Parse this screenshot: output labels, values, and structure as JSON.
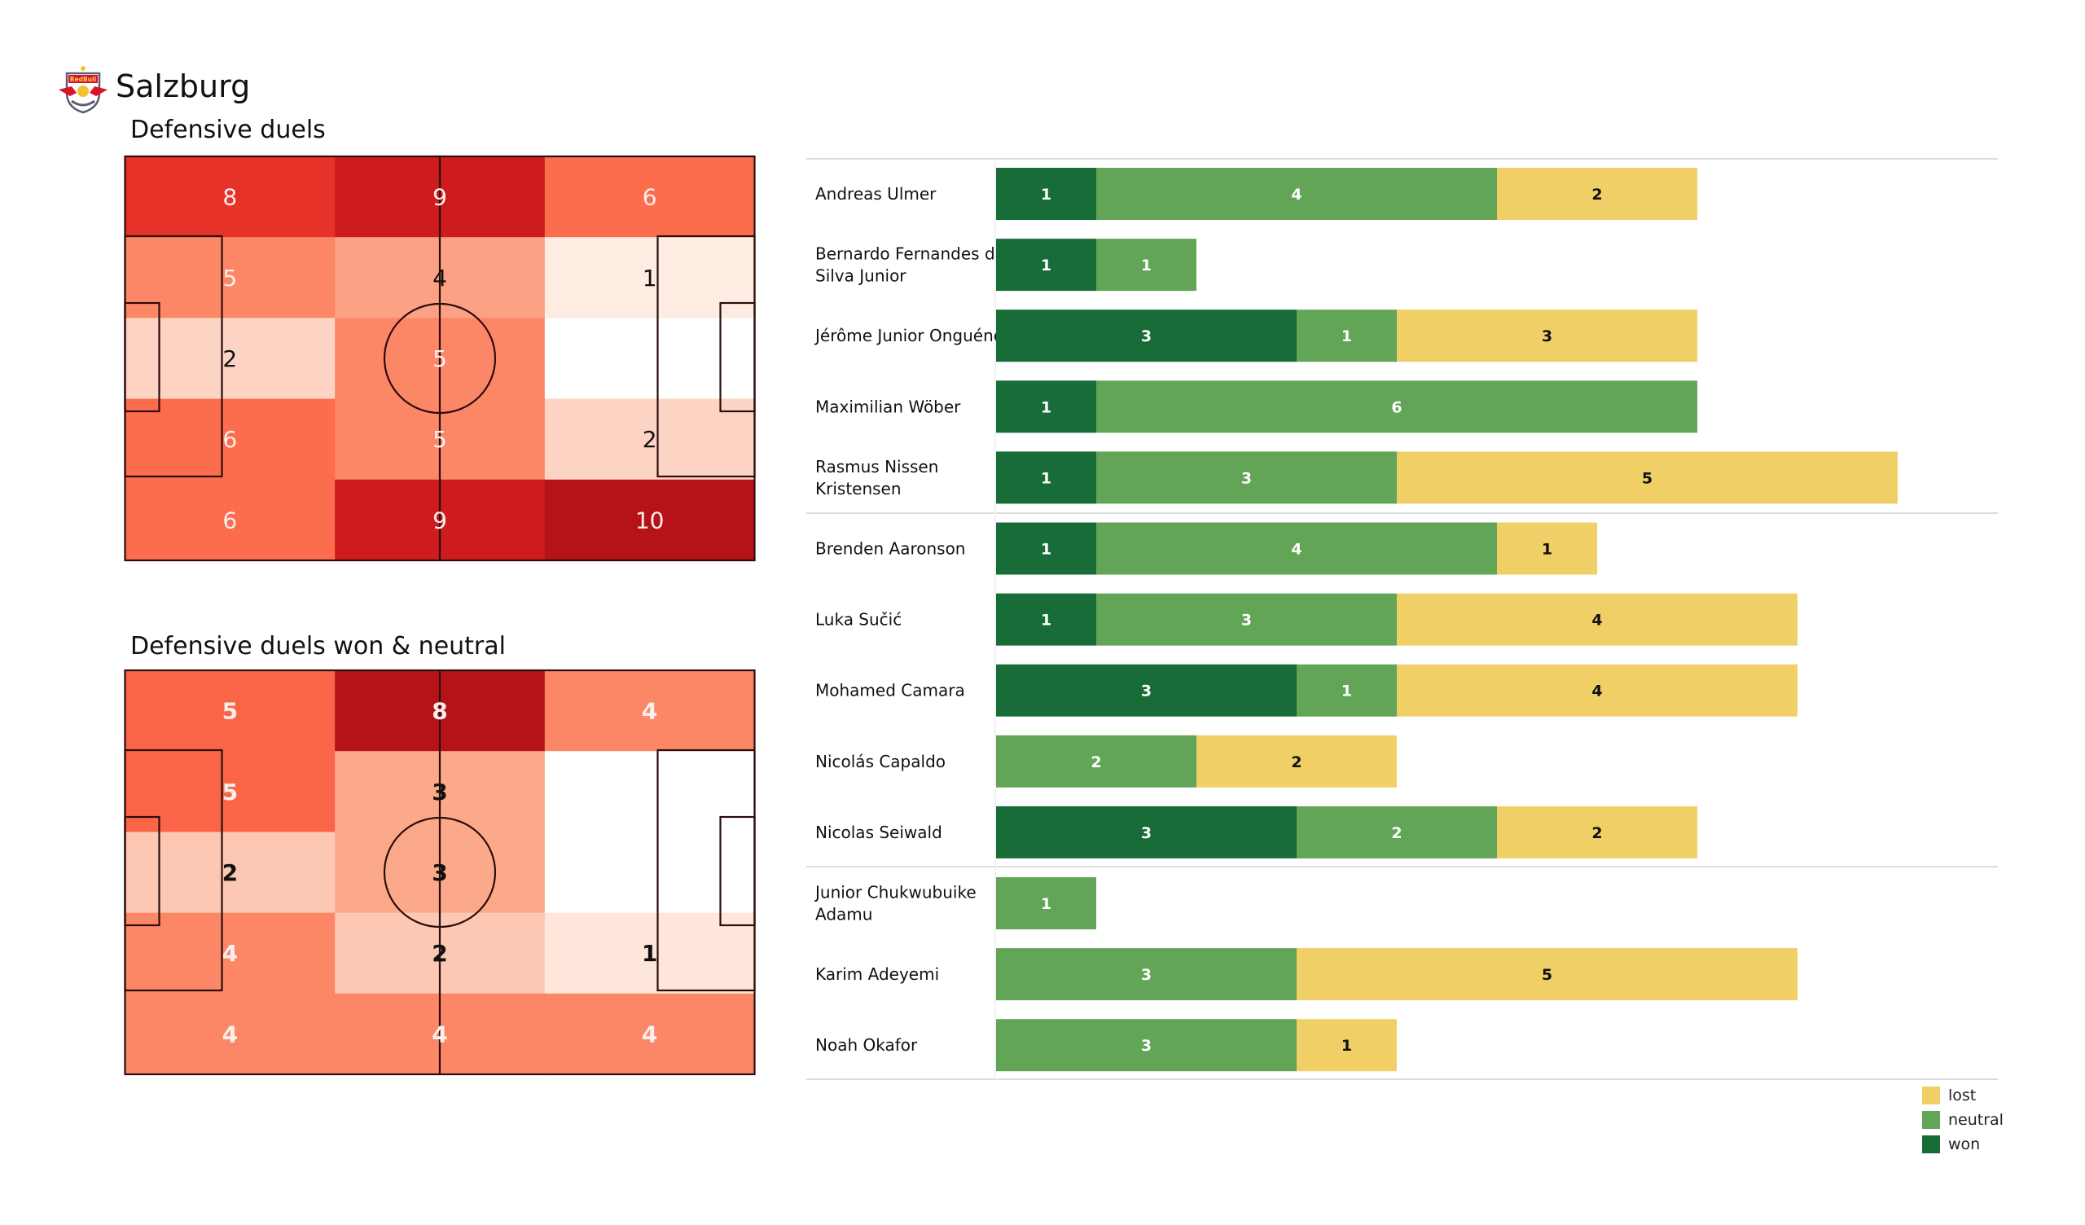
{
  "header": {
    "team": "Salzburg",
    "logo_icon": "red-bull-salzburg-crest-icon"
  },
  "colors": {
    "won": "#176c37",
    "neutral": "#62a556",
    "lost": "#f0d066",
    "pitch_line": "#2b0d0d",
    "separator": "#dcdcdc"
  },
  "chart_data": [
    {
      "type": "heatmap",
      "title": "Defensive duels",
      "grid": "5 rows x 3 columns over pitch (rows top to bottom, columns left to right)",
      "max": 10,
      "values": [
        [
          8,
          9,
          6
        ],
        [
          5,
          4,
          1
        ],
        [
          2,
          5,
          0
        ],
        [
          6,
          5,
          2
        ],
        [
          6,
          9,
          10
        ]
      ],
      "labels": [
        [
          "8",
          "9",
          "6"
        ],
        [
          "5",
          "4",
          "1"
        ],
        [
          "2",
          "5",
          ""
        ],
        [
          "6",
          "5",
          "2"
        ],
        [
          "6",
          "9",
          "10"
        ]
      ]
    },
    {
      "type": "heatmap",
      "title": "Defensive duels won & neutral",
      "grid": "5 rows x 3 columns over pitch (rows top to bottom, columns left to right)",
      "max": 8,
      "values": [
        [
          5,
          8,
          4
        ],
        [
          5,
          3,
          0
        ],
        [
          2,
          3,
          0
        ],
        [
          4,
          2,
          1
        ],
        [
          4,
          4,
          4
        ]
      ],
      "labels": [
        [
          "5",
          "8",
          "4"
        ],
        [
          "5",
          "3",
          ""
        ],
        [
          "2",
          "3",
          ""
        ],
        [
          "4",
          "2",
          "1"
        ],
        [
          "4",
          "4",
          "4"
        ]
      ]
    },
    {
      "type": "bar",
      "orientation": "horizontal-stacked",
      "series_order": [
        "won",
        "neutral",
        "lost"
      ],
      "groups": [
        [
          "Andreas Ulmer",
          "Bernardo Fernandes da Silva Junior",
          "Jérôme Junior Onguéné",
          "Maximilian Wöber",
          "Rasmus Nissen Kristensen"
        ],
        [
          "Brenden  Aaronson",
          "Luka Sučić",
          "Mohamed Camara",
          "Nicolás Capaldo",
          "Nicolas Seiwald"
        ],
        [
          "Junior Chukwubuike Adamu",
          "Karim Adeyemi",
          "Noah Okafor"
        ]
      ],
      "categories": [
        "Andreas Ulmer",
        "Bernardo Fernandes da Silva Junior",
        "Jérôme Junior Onguéné",
        "Maximilian Wöber",
        "Rasmus Nissen Kristensen",
        "Brenden  Aaronson",
        "Luka Sučić",
        "Mohamed Camara",
        "Nicolás Capaldo",
        "Nicolas Seiwald",
        "Junior Chukwubuike Adamu",
        "Karim Adeyemi",
        "Noah Okafor"
      ],
      "category_display": [
        [
          "Andreas Ulmer"
        ],
        [
          "Bernardo Fernandes da",
          "Silva Junior"
        ],
        [
          "Jérôme Junior Onguéné"
        ],
        [
          "Maximilian Wöber"
        ],
        [
          "Rasmus Nissen",
          "Kristensen"
        ],
        [
          "Brenden  Aaronson"
        ],
        [
          "Luka Sučić"
        ],
        [
          "Mohamed Camara"
        ],
        [
          "Nicolás Capaldo"
        ],
        [
          "Nicolas Seiwald"
        ],
        [
          "Junior Chukwubuike",
          "Adamu"
        ],
        [
          "Karim Adeyemi"
        ],
        [
          "Noah Okafor"
        ]
      ],
      "series": [
        {
          "name": "won",
          "values": [
            1,
            1,
            3,
            1,
            1,
            1,
            1,
            3,
            0,
            3,
            0,
            0,
            0
          ]
        },
        {
          "name": "neutral",
          "values": [
            4,
            1,
            1,
            6,
            3,
            4,
            3,
            1,
            2,
            2,
            1,
            3,
            3
          ]
        },
        {
          "name": "lost",
          "values": [
            2,
            0,
            3,
            0,
            5,
            1,
            4,
            4,
            2,
            2,
            0,
            5,
            1
          ]
        }
      ],
      "xlim": [
        0,
        9
      ],
      "legend": {
        "placement": "bottom-right",
        "entries": [
          "lost",
          "neutral",
          "won"
        ]
      }
    }
  ]
}
